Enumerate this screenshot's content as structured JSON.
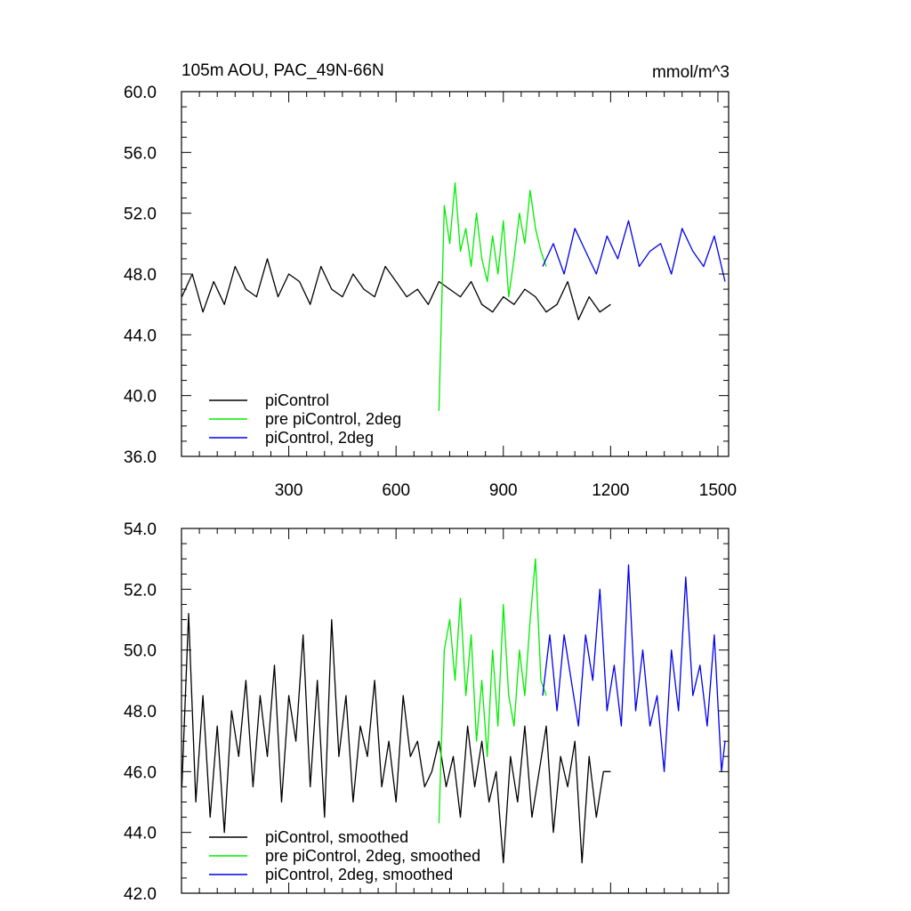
{
  "header": {
    "title": "105m AOU, PAC_49N-66N",
    "units": "mmol/m^3"
  },
  "colors": {
    "black": "#000000",
    "green": "#00ee00",
    "blue": "#0000ee"
  },
  "chart_data": [
    {
      "type": "line",
      "title": "105m AOU, PAC_49N-66N",
      "units_label": "mmol/m^3",
      "xlim": [
        0,
        1530
      ],
      "ylim": [
        36.0,
        60.0
      ],
      "x_ticks": [
        300,
        600,
        900,
        1200,
        1500
      ],
      "x_tick_labels": [
        "300",
        "600",
        "900",
        "1200",
        "1500"
      ],
      "y_ticks": [
        36.0,
        40.0,
        44.0,
        48.0,
        52.0,
        56.0,
        60.0
      ],
      "y_tick_labels": [
        "36.0",
        "40.0",
        "44.0",
        "48.0",
        "52.0",
        "56.0",
        "60.0"
      ],
      "legend_position": "bottom-left",
      "series": [
        {
          "name": "piControl",
          "color": "#000000",
          "x": [
            1,
            30,
            60,
            90,
            120,
            150,
            180,
            210,
            240,
            270,
            300,
            330,
            360,
            390,
            420,
            450,
            480,
            510,
            540,
            570,
            600,
            630,
            660,
            690,
            720,
            750,
            780,
            810,
            840,
            870,
            900,
            930,
            960,
            990,
            1020,
            1050,
            1080,
            1110,
            1140,
            1170,
            1200
          ],
          "y": [
            46.5,
            48.0,
            45.5,
            47.5,
            46.0,
            48.5,
            47.0,
            46.5,
            49.0,
            46.5,
            48.0,
            47.5,
            46.0,
            48.5,
            47.0,
            46.5,
            48.0,
            47.0,
            46.5,
            48.5,
            47.5,
            46.5,
            47.0,
            46.0,
            47.5,
            47.0,
            46.5,
            47.5,
            46.0,
            45.5,
            46.5,
            46.0,
            47.0,
            46.5,
            45.5,
            46.0,
            47.5,
            45.0,
            46.5,
            45.5,
            46.0
          ]
        },
        {
          "name": "pre piControl, 2deg",
          "color": "#00ee00",
          "x": [
            720,
            735,
            750,
            765,
            780,
            795,
            810,
            825,
            840,
            855,
            870,
            885,
            900,
            915,
            930,
            945,
            960,
            975,
            990,
            1005,
            1020
          ],
          "y": [
            39.0,
            52.5,
            50.0,
            54.0,
            49.5,
            51.0,
            48.5,
            52.0,
            49.0,
            47.5,
            50.5,
            48.0,
            51.5,
            46.5,
            49.0,
            52.0,
            50.0,
            53.5,
            51.0,
            49.5,
            48.5
          ]
        },
        {
          "name": "piControl, 2deg",
          "color": "#0000ee",
          "x": [
            1010,
            1040,
            1070,
            1100,
            1130,
            1160,
            1190,
            1220,
            1250,
            1280,
            1310,
            1340,
            1370,
            1400,
            1430,
            1460,
            1490,
            1520
          ],
          "y": [
            48.5,
            50.0,
            48.0,
            51.0,
            49.5,
            48.0,
            50.5,
            49.0,
            51.5,
            48.5,
            49.5,
            50.0,
            48.0,
            51.0,
            49.5,
            48.5,
            50.5,
            47.5
          ]
        }
      ]
    },
    {
      "type": "line",
      "xlim": [
        0,
        1530
      ],
      "ylim": [
        42.0,
        54.0
      ],
      "x_ticks": [
        300,
        600,
        900,
        1200,
        1500
      ],
      "y_ticks": [
        42.0,
        44.0,
        46.0,
        48.0,
        50.0,
        52.0,
        54.0
      ],
      "y_tick_labels": [
        "42.0",
        "44.0",
        "46.0",
        "48.0",
        "50.0",
        "52.0",
        "54.0"
      ],
      "legend_position": "bottom-left",
      "series": [
        {
          "name": "piControl, smoothed",
          "color": "#000000",
          "x": [
            1,
            20,
            40,
            60,
            80,
            100,
            120,
            140,
            160,
            180,
            200,
            220,
            240,
            260,
            280,
            300,
            320,
            340,
            360,
            380,
            400,
            420,
            440,
            460,
            480,
            500,
            520,
            540,
            560,
            580,
            600,
            620,
            640,
            660,
            680,
            700,
            720,
            740,
            760,
            780,
            800,
            820,
            840,
            860,
            880,
            900,
            920,
            940,
            960,
            980,
            1000,
            1020,
            1040,
            1060,
            1080,
            1100,
            1120,
            1140,
            1160,
            1180,
            1200
          ],
          "y": [
            45.5,
            51.2,
            45.0,
            48.5,
            44.5,
            47.5,
            44.0,
            48.0,
            46.5,
            49.0,
            45.5,
            48.5,
            46.5,
            49.5,
            45.0,
            48.5,
            47.0,
            50.5,
            45.5,
            49.0,
            44.5,
            51.0,
            46.5,
            48.5,
            45.0,
            47.5,
            46.5,
            49.0,
            45.5,
            47.0,
            45.0,
            48.5,
            46.5,
            47.0,
            45.5,
            46.0,
            47.0,
            45.5,
            46.5,
            44.5,
            47.5,
            45.5,
            47.0,
            45.0,
            46.0,
            43.0,
            46.5,
            45.0,
            47.5,
            44.5,
            46.0,
            47.5,
            44.0,
            46.5,
            45.5,
            47.0,
            43.0,
            46.5,
            44.5,
            46.0,
            46.0
          ]
        },
        {
          "name": "pre piControl, 2deg, smoothed",
          "color": "#00ee00",
          "x": [
            720,
            735,
            750,
            765,
            780,
            795,
            810,
            825,
            840,
            855,
            870,
            885,
            900,
            915,
            930,
            945,
            960,
            975,
            990,
            1005,
            1020
          ],
          "y": [
            44.3,
            50.0,
            51.0,
            49.0,
            51.7,
            48.5,
            50.5,
            47.0,
            49.0,
            46.5,
            50.0,
            47.5,
            51.5,
            48.5,
            47.5,
            50.0,
            48.5,
            51.0,
            53.0,
            49.0,
            48.5
          ]
        },
        {
          "name": "piControl, 2deg, smoothed",
          "color": "#0000ee",
          "x": [
            1010,
            1030,
            1050,
            1070,
            1090,
            1110,
            1130,
            1150,
            1170,
            1190,
            1210,
            1230,
            1250,
            1270,
            1290,
            1310,
            1330,
            1350,
            1370,
            1390,
            1410,
            1430,
            1450,
            1470,
            1490,
            1510,
            1520
          ],
          "y": [
            48.5,
            50.5,
            48.0,
            50.5,
            49.0,
            47.5,
            50.5,
            49.0,
            52.0,
            48.0,
            49.5,
            47.5,
            52.8,
            48.0,
            50.0,
            47.5,
            48.5,
            46.0,
            50.0,
            48.0,
            52.4,
            48.5,
            49.5,
            47.5,
            50.5,
            46.0,
            47.0
          ]
        }
      ]
    }
  ]
}
